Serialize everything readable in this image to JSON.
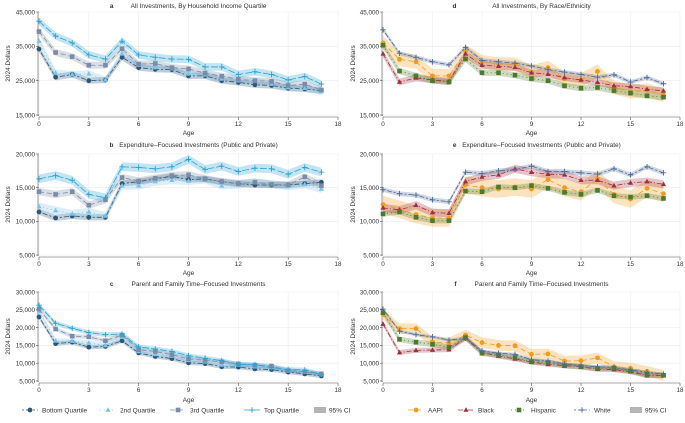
{
  "chart_data": [
    {
      "panel": "a",
      "type": "line",
      "title": "All Investments, By Household Income Quartile",
      "xlabel": "Age",
      "ylabel": "2024 Dollars",
      "xlim": [
        0,
        18
      ],
      "ylim": [
        15000,
        45000
      ],
      "xticks": [
        "0",
        "3",
        "6",
        "9",
        "12",
        "15",
        "18"
      ],
      "yticks": [
        "15,000",
        "25,000",
        "35,000",
        "45,000"
      ],
      "x": [
        0,
        1,
        2,
        3,
        4,
        5,
        6,
        7,
        8,
        9,
        10,
        11,
        12,
        13,
        14,
        15,
        16,
        17
      ],
      "grid": true,
      "group": "income",
      "series": [
        {
          "name": "Bottom Quartile",
          "ci": 900,
          "values": [
            34200,
            26000,
            26800,
            25000,
            25200,
            31800,
            28800,
            28300,
            28200,
            26400,
            26400,
            25000,
            24500,
            23800,
            23600,
            22800,
            22600,
            22100
          ]
        },
        {
          "name": "2nd Quartile",
          "ci": 1000,
          "values": [
            36500,
            27300,
            26800,
            27000,
            25200,
            32800,
            29500,
            28800,
            28500,
            27000,
            26700,
            25500,
            25000,
            24800,
            24000,
            23000,
            22800,
            21800
          ]
        },
        {
          "name": "3rd Quartile",
          "ci": 1000,
          "values": [
            39300,
            33200,
            32000,
            29500,
            29500,
            34300,
            29800,
            30000,
            28800,
            28400,
            27200,
            26300,
            25400,
            25000,
            24800,
            23600,
            24000,
            22300
          ]
        },
        {
          "name": "Top Quartile",
          "ci": 1100,
          "values": [
            42300,
            38000,
            36000,
            32500,
            31300,
            36500,
            32500,
            31800,
            31300,
            31200,
            29000,
            29000,
            26800,
            27600,
            26800,
            25200,
            26200,
            24000
          ]
        }
      ]
    },
    {
      "panel": "b",
      "type": "line",
      "title": "Expenditure–Focused Investments (Public and Private)",
      "xlabel": "Age",
      "ylabel": "2024 Dollars",
      "xlim": [
        0,
        18
      ],
      "ylim": [
        5000,
        20000
      ],
      "xticks": [
        "0",
        "3",
        "6",
        "9",
        "12",
        "15",
        "18"
      ],
      "yticks": [
        "5,000",
        "10,000",
        "15,000",
        "20,000"
      ],
      "x": [
        0,
        1,
        2,
        3,
        4,
        5,
        6,
        7,
        8,
        9,
        10,
        11,
        12,
        13,
        14,
        15,
        16,
        17
      ],
      "grid": true,
      "group": "income",
      "series": [
        {
          "name": "Bottom Quartile",
          "ci": 450,
          "values": [
            11400,
            10500,
            10800,
            10600,
            10600,
            15600,
            15900,
            16300,
            16700,
            16200,
            16300,
            15900,
            15600,
            15400,
            15400,
            15400,
            15600,
            15800
          ]
        },
        {
          "name": "2nd Quartile",
          "ci": 600,
          "values": [
            12200,
            11600,
            11100,
            11400,
            10800,
            15300,
            15300,
            15900,
            16100,
            16000,
            16200,
            15300,
            15500,
            15800,
            15500,
            15200,
            15500,
            14800
          ]
        },
        {
          "name": "3rd Quartile",
          "ci": 550,
          "values": [
            14400,
            14000,
            14400,
            12400,
            13200,
            16500,
            16000,
            16400,
            16800,
            16900,
            16300,
            15900,
            15600,
            15800,
            15500,
            15400,
            16600,
            15300
          ]
        },
        {
          "name": "Top Quartile",
          "ci": 650,
          "values": [
            16300,
            16800,
            16100,
            14000,
            13500,
            18100,
            18000,
            17800,
            18100,
            19200,
            17700,
            18200,
            17400,
            17900,
            17800,
            17000,
            18000,
            17300
          ]
        }
      ]
    },
    {
      "panel": "c",
      "type": "line",
      "title": "Parent and Family Time–Focused Investments",
      "xlabel": "Age",
      "ylabel": "2024 Dollars",
      "xlim": [
        0,
        18
      ],
      "ylim": [
        5000,
        30000
      ],
      "xticks": [
        "0",
        "3",
        "6",
        "9",
        "12",
        "15",
        "18"
      ],
      "yticks": [
        "5,000",
        "10,000",
        "15,000",
        "20,000",
        "25,000",
        "30,000"
      ],
      "x": [
        0,
        1,
        2,
        3,
        4,
        5,
        6,
        7,
        8,
        9,
        10,
        11,
        12,
        13,
        14,
        15,
        16,
        17
      ],
      "grid": true,
      "group": "income",
      "series": [
        {
          "name": "Bottom Quartile",
          "ci": 600,
          "values": [
            23000,
            15500,
            15900,
            14500,
            14700,
            16300,
            12900,
            11900,
            11300,
            10100,
            9900,
            9000,
            8900,
            8400,
            8200,
            7500,
            7000,
            6400
          ]
        },
        {
          "name": "2nd Quartile",
          "ci": 700,
          "values": [
            24500,
            16300,
            16200,
            15700,
            15000,
            17300,
            13300,
            12500,
            12000,
            10800,
            10400,
            9500,
            9500,
            9000,
            8800,
            7900,
            7500,
            6800
          ]
        },
        {
          "name": "3rd Quartile",
          "ci": 600,
          "values": [
            25200,
            19600,
            17600,
            17400,
            16300,
            17900,
            13800,
            13300,
            12400,
            11200,
            10800,
            10400,
            9800,
            9400,
            9200,
            7900,
            7600,
            7000
          ]
        },
        {
          "name": "Top Quartile",
          "ci": 650,
          "values": [
            26300,
            21200,
            19800,
            18600,
            18000,
            18200,
            14600,
            14000,
            13300,
            12100,
            11400,
            10700,
            9700,
            9600,
            8800,
            8200,
            8100,
            6800
          ]
        }
      ]
    },
    {
      "panel": "d",
      "type": "line",
      "title": "All Investments, By Race/Ethnicity",
      "xlabel": "Age",
      "ylabel": "2024 Dollars",
      "xlim": [
        0,
        18
      ],
      "ylim": [
        15000,
        45000
      ],
      "xticks": [
        "0",
        "3",
        "6",
        "9",
        "12",
        "15",
        "18"
      ],
      "yticks": [
        "15,000",
        "25,000",
        "35,000",
        "45,000"
      ],
      "x": [
        0,
        1,
        2,
        3,
        4,
        5,
        6,
        7,
        8,
        9,
        10,
        11,
        12,
        13,
        14,
        15,
        16,
        17
      ],
      "grid": true,
      "group": "race",
      "series": [
        {
          "name": "AAPI",
          "ci": 2000,
          "values": [
            36000,
            31200,
            30500,
            26400,
            26400,
            33500,
            30500,
            29800,
            29800,
            27500,
            28800,
            25500,
            25200,
            27700,
            23000,
            21800,
            22200,
            20800
          ]
        },
        {
          "name": "Black",
          "ci": 1000,
          "values": [
            32800,
            24600,
            25800,
            25200,
            24800,
            32800,
            29500,
            29200,
            28900,
            27300,
            26900,
            25900,
            25200,
            24500,
            23500,
            23300,
            22500,
            22000
          ]
        },
        {
          "name": "Hispanic",
          "ci": 900,
          "values": [
            35300,
            27800,
            26400,
            25000,
            24600,
            31300,
            27300,
            27300,
            26600,
            25600,
            25000,
            23500,
            22800,
            23000,
            22100,
            21400,
            20600,
            20200
          ]
        },
        {
          "name": "White",
          "ci": 600,
          "values": [
            39800,
            33000,
            31800,
            30500,
            29600,
            34700,
            30900,
            30500,
            30100,
            29300,
            28200,
            27500,
            26800,
            26000,
            26700,
            24600,
            25900,
            24100
          ]
        }
      ]
    },
    {
      "panel": "e",
      "type": "line",
      "title": "Expenditure–Focused Investments (Public and Private)",
      "xlabel": "Age",
      "ylabel": "2024 Dollars",
      "xlim": [
        0,
        18
      ],
      "ylim": [
        5000,
        20000
      ],
      "xticks": [
        "0",
        "3",
        "6",
        "9",
        "12",
        "15",
        "18"
      ],
      "yticks": [
        "5,000",
        "10,000",
        "15,000",
        "20,000"
      ],
      "x": [
        0,
        1,
        2,
        3,
        4,
        5,
        6,
        7,
        8,
        9,
        10,
        11,
        12,
        13,
        14,
        15,
        16,
        17
      ],
      "grid": true,
      "group": "race",
      "series": [
        {
          "name": "AAPI",
          "ci": 1300,
          "values": [
            12500,
            11800,
            11000,
            10500,
            10500,
            15400,
            15000,
            14800,
            15100,
            14800,
            16200,
            15000,
            14400,
            16300,
            14000,
            13300,
            14900,
            14100
          ]
        },
        {
          "name": "Black",
          "ci": 600,
          "values": [
            12000,
            11700,
            12400,
            11300,
            11200,
            15900,
            16600,
            16900,
            17800,
            17300,
            17000,
            16900,
            16100,
            16100,
            15300,
            15700,
            15900,
            15500
          ]
        },
        {
          "name": "Hispanic",
          "ci": 400,
          "values": [
            11100,
            11400,
            10600,
            10100,
            10100,
            14500,
            14400,
            15100,
            15000,
            15300,
            14900,
            14300,
            14000,
            14600,
            13800,
            13600,
            13800,
            13400
          ]
        },
        {
          "name": "White",
          "ci": 350,
          "values": [
            14700,
            14100,
            13900,
            13200,
            12900,
            17300,
            17100,
            17500,
            17700,
            18200,
            17400,
            17400,
            17200,
            17000,
            17800,
            16900,
            18100,
            17200
          ]
        }
      ]
    },
    {
      "panel": "f",
      "type": "line",
      "title": "Parent and Family Time–Focused Investments",
      "xlabel": "Age",
      "ylabel": "2024 Dollars",
      "xlim": [
        0,
        18
      ],
      "ylim": [
        5000,
        30000
      ],
      "xticks": [
        "0",
        "3",
        "6",
        "9",
        "12",
        "15",
        "18"
      ],
      "yticks": [
        "5,000",
        "10,000",
        "15,000",
        "20,000",
        "25,000",
        "30,000"
      ],
      "x": [
        0,
        1,
        2,
        3,
        4,
        5,
        6,
        7,
        8,
        9,
        10,
        11,
        12,
        13,
        14,
        15,
        16,
        17
      ],
      "grid": true,
      "group": "race",
      "series": [
        {
          "name": "AAPI",
          "ci": 1500,
          "values": [
            23700,
            19700,
            19700,
            16000,
            15700,
            17900,
            15800,
            15000,
            14900,
            12500,
            12600,
            10600,
            10700,
            11500,
            9000,
            8600,
            7700,
            6600
          ]
        },
        {
          "name": "Black",
          "ci": 700,
          "values": [
            21000,
            13000,
            13600,
            13700,
            13800,
            17000,
            13000,
            12000,
            11200,
            10300,
            9700,
            9300,
            9000,
            8300,
            8200,
            7600,
            6500,
            6500
          ]
        },
        {
          "name": "Hispanic",
          "ci": 800,
          "values": [
            24200,
            16700,
            15900,
            15300,
            14500,
            17200,
            12800,
            12300,
            11600,
            10400,
            10200,
            9300,
            9000,
            8500,
            8600,
            7800,
            6800,
            6600
          ]
        },
        {
          "name": "White",
          "ci": 450,
          "values": [
            25200,
            19000,
            18000,
            17400,
            16500,
            17000,
            13500,
            12800,
            12500,
            11000,
            10600,
            9800,
            9300,
            9000,
            8800,
            8100,
            7500,
            6900
          ]
        }
      ]
    }
  ],
  "legends": {
    "income": {
      "items": [
        {
          "label": "Bottom Quartile",
          "color": "#2c5777",
          "marker": "circle",
          "dash": "2,2,5,2"
        },
        {
          "label": "2nd Quartile",
          "color": "#7cc2ea",
          "marker": "triangle",
          "dash": "1,3"
        },
        {
          "label": "3rd Quartile",
          "color": "#7a8ca6",
          "marker": "square",
          "dash": "5,3"
        },
        {
          "label": "Top Quartile",
          "color": "#27a3d3",
          "marker": "plus",
          "dash": "7,2"
        }
      ],
      "ci_label": "95% CI"
    },
    "race": {
      "items": [
        {
          "label": "AAPI",
          "color": "#f09a1e",
          "marker": "circle",
          "dash": "5,3"
        },
        {
          "label": "Black",
          "color": "#a22f3f",
          "marker": "triangle",
          "dash": "5,2,1,2"
        },
        {
          "label": "Hispanic",
          "color": "#4c7a2a",
          "marker": "square",
          "dash": "1,3"
        },
        {
          "label": "White",
          "color": "#4d6c97",
          "marker": "plus",
          "dash": "2,2,5,2"
        }
      ],
      "ci_label": "95% CI"
    }
  }
}
